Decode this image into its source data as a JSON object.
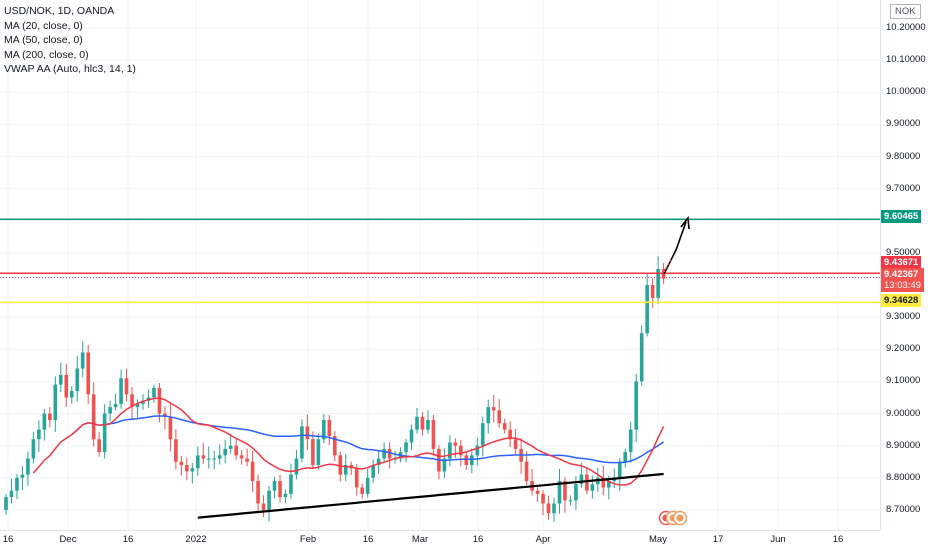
{
  "header": {
    "symbol_line": "USD/NOK, 1D, OANDA",
    "indicators": [
      "MA (20, close, 0)",
      "MA (50, close, 0)",
      "MA (200, close, 0)",
      "VWAP AA (Auto, hlc3, 14, 1)"
    ],
    "currency": "NOK"
  },
  "tags": {
    "green_level": "9.60465",
    "red_level": "9.43671",
    "price": "9.42367",
    "countdown": "13:03:49",
    "yellow_level": "9.34628"
  },
  "colors": {
    "up": "#26a69a",
    "down": "#ef5350",
    "ma20": "#f23645",
    "ma50": "#2962ff",
    "ma200": "#000000",
    "green_line": "#089981",
    "red_line": "#f23645",
    "yellow_line": "#ffeb3b"
  },
  "chart_data": {
    "type": "candlestick",
    "y_ticks": [
      "10.20000",
      "10.10000",
      "10.00000",
      "9.90000",
      "9.80000",
      "9.70000",
      "9.50000",
      "9.30000",
      "9.20000",
      "9.10000",
      "9.00000",
      "8.90000",
      "8.80000",
      "8.70000"
    ],
    "ylim": [
      8.65,
      10.25
    ],
    "x_ticks": [
      "16",
      "Dec",
      "16",
      "2022",
      "Feb",
      "16",
      "Mar",
      "16",
      "Apr",
      "May",
      "17",
      "Jun",
      "16"
    ],
    "horizontal_lines": [
      9.60465,
      9.43671,
      9.34628
    ],
    "closes": [
      8.74,
      8.76,
      8.8,
      8.81,
      8.86,
      8.92,
      8.95,
      9.0,
      8.98,
      9.09,
      9.12,
      9.05,
      9.07,
      9.14,
      9.19,
      9.06,
      8.92,
      8.88,
      9.0,
      9.02,
      9.03,
      9.11,
      9.06,
      9.02,
      9.03,
      9.04,
      9.05,
      9.08,
      9.0,
      8.99,
      8.92,
      8.85,
      8.84,
      8.82,
      8.83,
      8.87,
      8.86,
      8.86,
      8.86,
      8.87,
      8.89,
      8.9,
      8.87,
      8.86,
      8.85,
      8.79,
      8.72,
      8.7,
      8.76,
      8.79,
      8.74,
      8.75,
      8.81,
      8.86,
      8.96,
      8.92,
      8.84,
      8.92,
      8.98,
      8.93,
      8.87,
      8.81,
      8.84,
      8.83,
      8.77,
      8.75,
      8.8,
      8.84,
      8.86,
      8.89,
      8.86,
      8.86,
      8.88,
      8.91,
      8.95,
      8.99,
      8.95,
      8.98,
      8.89,
      8.82,
      8.86,
      8.91,
      8.9,
      8.87,
      8.84,
      8.87,
      8.9,
      8.97,
      9.02,
      9.01,
      8.97,
      8.95,
      8.92,
      8.89,
      8.85,
      8.79,
      8.76,
      8.75,
      8.72,
      8.69,
      8.72,
      8.79,
      8.73,
      8.73,
      8.78,
      8.81,
      8.76,
      8.78,
      8.8,
      8.77,
      8.79,
      8.8,
      8.85,
      8.88,
      8.95,
      9.1,
      9.25,
      9.4,
      9.36,
      9.45,
      9.42
    ],
    "opens": [
      8.7,
      8.74,
      8.76,
      8.8,
      8.81,
      8.86,
      8.92,
      8.95,
      9.0,
      8.98,
      9.09,
      9.12,
      9.05,
      9.07,
      9.14,
      9.19,
      9.06,
      8.92,
      8.88,
      9.0,
      9.02,
      9.03,
      9.11,
      9.06,
      9.02,
      9.03,
      9.04,
      9.05,
      9.08,
      9.0,
      8.99,
      8.92,
      8.85,
      8.84,
      8.82,
      8.83,
      8.87,
      8.86,
      8.86,
      8.86,
      8.87,
      8.89,
      8.9,
      8.87,
      8.86,
      8.85,
      8.79,
      8.72,
      8.7,
      8.76,
      8.79,
      8.74,
      8.75,
      8.81,
      8.86,
      8.96,
      8.92,
      8.84,
      8.92,
      8.98,
      8.93,
      8.87,
      8.81,
      8.84,
      8.83,
      8.77,
      8.75,
      8.8,
      8.84,
      8.86,
      8.89,
      8.86,
      8.86,
      8.88,
      8.91,
      8.95,
      8.99,
      8.95,
      8.98,
      8.89,
      8.82,
      8.86,
      8.91,
      8.9,
      8.87,
      8.84,
      8.87,
      8.9,
      8.97,
      9.02,
      9.01,
      8.97,
      8.95,
      8.92,
      8.89,
      8.85,
      8.79,
      8.76,
      8.75,
      8.72,
      8.69,
      8.72,
      8.79,
      8.73,
      8.73,
      8.78,
      8.81,
      8.76,
      8.78,
      8.8,
      8.77,
      8.79,
      8.8,
      8.85,
      8.88,
      8.95,
      9.1,
      9.25,
      9.4,
      9.36,
      9.45
    ]
  }
}
